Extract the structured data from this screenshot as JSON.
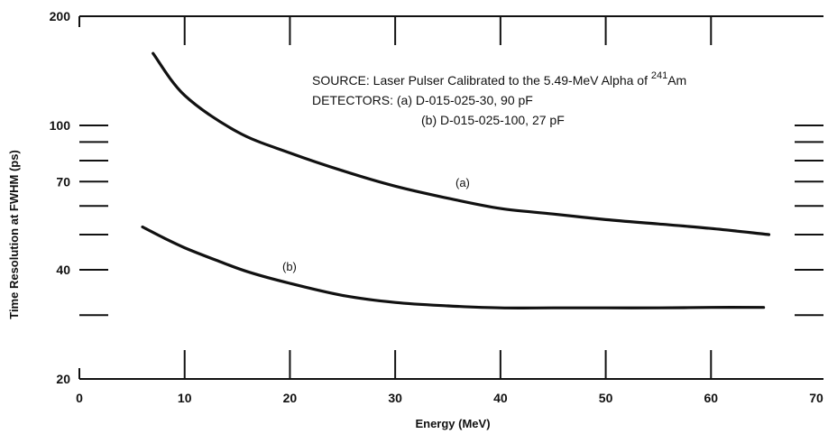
{
  "chart_data": {
    "type": "line",
    "xlabel": "Energy (MeV)",
    "ylabel": "Time Resolution at FWHM (ps)",
    "xlim": [
      0,
      70
    ],
    "ylim": [
      20,
      200
    ],
    "yscale": "log",
    "x_ticks": [
      "0",
      "10",
      "20",
      "30",
      "40",
      "50",
      "60",
      "70"
    ],
    "y_tick_labels": [
      "20",
      "40",
      "70",
      "100",
      "200"
    ],
    "y_minor_ticks": [
      30,
      50,
      60,
      80,
      90
    ],
    "grid": false,
    "annotation": {
      "source_prefix": "SOURCE:  Laser Pulser Calibrated to the 5.49-MeV Alpha of ",
      "isotope_mass": "241",
      "isotope_symbol": "Am",
      "detectors_line1": "DETECTORS: (a) D-015-025-30, 90 pF",
      "detectors_line2": "(b) D-015-025-100, 27 pF"
    },
    "series": [
      {
        "name": "(a)",
        "x": [
          7,
          10,
          15,
          20,
          25,
          30,
          35,
          40,
          45,
          50,
          55,
          60,
          65.5
        ],
        "y": [
          158,
          121,
          96,
          84,
          75,
          68,
          63,
          59,
          57,
          55,
          53.5,
          52,
          50
        ]
      },
      {
        "name": "(b)",
        "x": [
          6,
          8,
          10,
          13,
          16,
          20,
          25,
          30,
          35,
          40,
          45,
          50,
          55,
          60,
          65
        ],
        "y": [
          52.5,
          49,
          46,
          42.5,
          39.5,
          36.7,
          34,
          32.5,
          31.8,
          31.4,
          31.4,
          31.4,
          31.4,
          31.5,
          31.5
        ]
      }
    ]
  }
}
